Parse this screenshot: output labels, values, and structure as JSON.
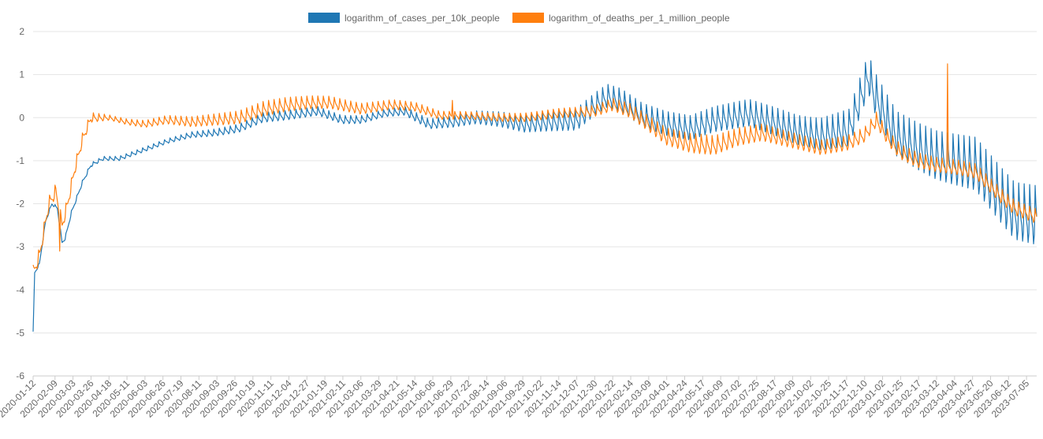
{
  "chart_data": {
    "type": "line",
    "legend_position": "top",
    "grid": true,
    "ylim": [
      -6,
      2
    ],
    "y_ticks": [
      "2",
      "1",
      "0",
      "-1",
      "-2",
      "-3",
      "-4",
      "-5",
      "-6"
    ],
    "x_range": [
      "2020-01-12",
      "2023-07-18"
    ],
    "x_tick_labels": [
      "2020-01-12",
      "2020-02-09",
      "2020-03-03",
      "2020-03-26",
      "2020-04-18",
      "2020-05-11",
      "2020-06-03",
      "2020-06-26",
      "2020-07-19",
      "2020-08-11",
      "2020-09-03",
      "2020-09-26",
      "2020-10-19",
      "2020-11-11",
      "2020-12-04",
      "2020-12-27",
      "2021-01-19",
      "2021-02-11",
      "2021-03-06",
      "2021-03-29",
      "2021-04-21",
      "2021-05-14",
      "2021-06-06",
      "2021-06-29",
      "2021-07-22",
      "2021-08-14",
      "2021-09-06",
      "2021-09-29",
      "2021-10-22",
      "2021-11-14",
      "2021-12-07",
      "2021-12-30",
      "2022-01-22",
      "2022-02-14",
      "2022-03-09",
      "2022-04-01",
      "2022-04-24",
      "2022-05-17",
      "2022-06-09",
      "2022-07-02",
      "2022-07-25",
      "2022-08-17",
      "2022-09-09",
      "2022-10-02",
      "2022-10-25",
      "2022-11-17",
      "2022-12-10",
      "2023-01-02",
      "2023-01-25",
      "2023-02-17",
      "2023-03-12",
      "2023-04-04",
      "2023-04-27",
      "2023-05-20",
      "2023-06-12",
      "2023-07-05"
    ],
    "series": [
      {
        "name": "logarithm_of_cases_per_10k_people",
        "color": "#1f77b4",
        "weekly_amplitude": [
          [
            0,
            0.05
          ],
          [
            60,
            0.08
          ],
          [
            180,
            0.1
          ],
          [
            300,
            0.2
          ],
          [
            450,
            0.15
          ],
          [
            560,
            0.25
          ],
          [
            700,
            0.45
          ],
          [
            850,
            0.5
          ],
          [
            990,
            0.6
          ],
          [
            1100,
            0.9
          ],
          [
            1280,
            1.2
          ]
        ],
        "points": [
          [
            "2020-01-12",
            -5.0
          ],
          [
            "2020-01-14",
            -3.6
          ],
          [
            "2020-01-20",
            -3.4
          ],
          [
            "2020-01-28",
            -2.4
          ],
          [
            "2020-02-05",
            -2.0
          ],
          [
            "2020-02-12",
            -2.1
          ],
          [
            "2020-02-18",
            -2.9
          ],
          [
            "2020-02-22",
            -2.8
          ],
          [
            "2020-03-01",
            -2.2
          ],
          [
            "2020-03-15",
            -1.5
          ],
          [
            "2020-03-26",
            -1.1
          ],
          [
            "2020-04-10",
            -0.95
          ],
          [
            "2020-05-01",
            -0.95
          ],
          [
            "2020-06-01",
            -0.75
          ],
          [
            "2020-07-01",
            -0.55
          ],
          [
            "2020-08-01",
            -0.4
          ],
          [
            "2020-09-01",
            -0.35
          ],
          [
            "2020-10-01",
            -0.25
          ],
          [
            "2020-11-01",
            0.0
          ],
          [
            "2020-12-01",
            0.05
          ],
          [
            "2021-01-10",
            0.15
          ],
          [
            "2021-02-10",
            -0.05
          ],
          [
            "2021-03-06",
            -0.05
          ],
          [
            "2021-04-05",
            0.1
          ],
          [
            "2021-05-01",
            0.15
          ],
          [
            "2021-06-01",
            -0.15
          ],
          [
            "2021-07-01",
            -0.1
          ],
          [
            "2021-08-01",
            0.0
          ],
          [
            "2021-09-01",
            -0.05
          ],
          [
            "2021-10-01",
            -0.15
          ],
          [
            "2021-11-01",
            -0.1
          ],
          [
            "2021-12-07",
            -0.05
          ],
          [
            "2021-12-30",
            0.3
          ],
          [
            "2022-01-15",
            0.5
          ],
          [
            "2022-02-01",
            0.4
          ],
          [
            "2022-03-01",
            0.05
          ],
          [
            "2022-04-01",
            -0.15
          ],
          [
            "2022-05-01",
            -0.25
          ],
          [
            "2022-06-01",
            -0.05
          ],
          [
            "2022-07-15",
            0.1
          ],
          [
            "2022-08-17",
            -0.1
          ],
          [
            "2022-09-15",
            -0.3
          ],
          [
            "2022-10-15",
            -0.4
          ],
          [
            "2022-11-20",
            -0.25
          ],
          [
            "2022-12-05",
            0.5
          ],
          [
            "2022-12-15",
            1.0
          ],
          [
            "2022-12-22",
            0.6
          ],
          [
            "2023-01-05",
            0.1
          ],
          [
            "2023-01-20",
            -0.4
          ],
          [
            "2023-02-17",
            -0.7
          ],
          [
            "2023-03-12",
            -0.9
          ],
          [
            "2023-04-04",
            -1.0
          ],
          [
            "2023-05-01",
            -1.1
          ],
          [
            "2023-06-01",
            -1.8
          ],
          [
            "2023-06-20",
            -2.2
          ],
          [
            "2023-07-18",
            -2.3
          ]
        ]
      },
      {
        "name": "logarithm_of_deaths_per_1_million_people",
        "color": "#ff7f0e",
        "weekly_amplitude": [
          [
            0,
            0.3
          ],
          [
            60,
            0.25
          ],
          [
            100,
            0.1
          ],
          [
            300,
            0.3
          ],
          [
            450,
            0.2
          ],
          [
            560,
            0.15
          ],
          [
            700,
            0.2
          ],
          [
            850,
            0.4
          ],
          [
            990,
            0.3
          ],
          [
            1100,
            0.3
          ],
          [
            1280,
            0.3
          ]
        ],
        "points": [
          [
            "2020-01-12",
            -3.6
          ],
          [
            "2020-01-20",
            -3.2
          ],
          [
            "2020-02-01",
            -2.0
          ],
          [
            "2020-02-10",
            -1.7
          ],
          [
            "2020-02-18",
            -2.5
          ],
          [
            "2020-02-25",
            -2.0
          ],
          [
            "2020-03-05",
            -1.2
          ],
          [
            "2020-03-15",
            -0.5
          ],
          [
            "2020-03-26",
            0.0
          ],
          [
            "2020-04-18",
            0.0
          ],
          [
            "2020-05-11",
            -0.1
          ],
          [
            "2020-06-03",
            -0.15
          ],
          [
            "2020-07-01",
            -0.05
          ],
          [
            "2020-08-01",
            -0.1
          ],
          [
            "2020-09-01",
            -0.05
          ],
          [
            "2020-10-01",
            0.0
          ],
          [
            "2020-11-01",
            0.2
          ],
          [
            "2020-12-01",
            0.3
          ],
          [
            "2021-01-01",
            0.35
          ],
          [
            "2021-01-25",
            0.35
          ],
          [
            "2021-03-06",
            0.2
          ],
          [
            "2021-04-15",
            0.3
          ],
          [
            "2021-05-14",
            0.25
          ],
          [
            "2021-06-15",
            0.05
          ],
          [
            "2021-07-22",
            0.05
          ],
          [
            "2021-09-01",
            0.0
          ],
          [
            "2021-10-01",
            0.0
          ],
          [
            "2021-11-14",
            0.1
          ],
          [
            "2021-12-30",
            0.15
          ],
          [
            "2022-01-22",
            0.3
          ],
          [
            "2022-02-14",
            0.15
          ],
          [
            "2022-03-09",
            -0.15
          ],
          [
            "2022-04-01",
            -0.45
          ],
          [
            "2022-05-01",
            -0.6
          ],
          [
            "2022-06-01",
            -0.65
          ],
          [
            "2022-07-02",
            -0.45
          ],
          [
            "2022-08-01",
            -0.35
          ],
          [
            "2022-09-01",
            -0.5
          ],
          [
            "2022-10-15",
            -0.7
          ],
          [
            "2022-11-17",
            -0.6
          ],
          [
            "2022-12-10",
            -0.4
          ],
          [
            "2022-12-25",
            -0.05
          ],
          [
            "2023-01-10",
            -0.5
          ],
          [
            "2023-01-25",
            -0.8
          ],
          [
            "2023-02-17",
            -1.0
          ],
          [
            "2023-03-12",
            -1.1
          ],
          [
            "2023-04-04",
            -1.15
          ],
          [
            "2023-05-01",
            -1.25
          ],
          [
            "2023-06-01",
            -1.8
          ],
          [
            "2023-06-20",
            -2.1
          ],
          [
            "2023-07-18",
            -2.3
          ]
        ],
        "spikes": [
          [
            "2023-03-26",
            1.25
          ],
          [
            "2021-07-01",
            0.4
          ],
          [
            "2020-02-15",
            -3.1
          ]
        ]
      }
    ]
  }
}
